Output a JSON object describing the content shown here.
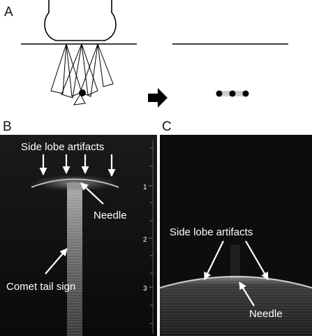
{
  "panels": {
    "a": {
      "letter": "A"
    },
    "b": {
      "letter": "B",
      "side_lobe_label": "Side lobe artifacts",
      "needle_label": "Needle",
      "comet_label": "Comet tail sign",
      "depth_ticks": [
        "1",
        "2",
        "3"
      ]
    },
    "c": {
      "letter": "C",
      "side_lobe_label": "Side lobe artifacts",
      "needle_label": "Needle"
    }
  },
  "colors": {
    "ultrasound_bg": "#0e0e0e",
    "label": "#ffffff",
    "line_art": "#000000"
  }
}
